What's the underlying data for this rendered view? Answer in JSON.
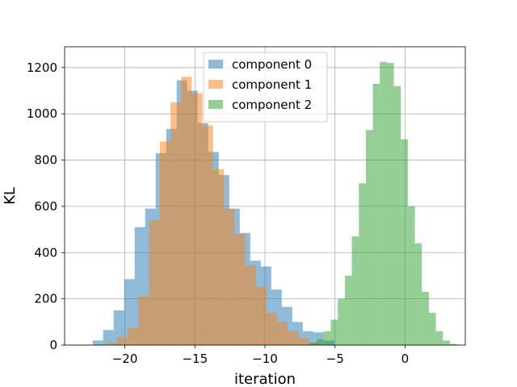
{
  "chart_data": {
    "type": "histogram",
    "title": "",
    "xlabel": "iteration",
    "ylabel": "KL",
    "xlim": [
      -24.3,
      4.3
    ],
    "ylim": [
      0,
      1290
    ],
    "xticks": [
      -20,
      -15,
      -10,
      -5,
      0
    ],
    "xtick_labels": [
      "−20",
      "−15",
      "−10",
      "−5",
      "0"
    ],
    "yticks": [
      0,
      200,
      400,
      600,
      800,
      1000,
      1200
    ],
    "ytick_labels": [
      "0",
      "200",
      "400",
      "600",
      "800",
      "1000",
      "1200"
    ],
    "grid": true,
    "legend_position": "upper center",
    "series": [
      {
        "name": "component 0",
        "color": "#1f77b4",
        "alpha": 0.5,
        "bin_start": -22.3,
        "bin_width": 0.75,
        "counts": [
          20,
          65,
          150,
          285,
          510,
          590,
          830,
          935,
          1145,
          1100,
          960,
          835,
          735,
          590,
          485,
          365,
          340,
          240,
          165,
          100,
          60,
          55,
          20
        ]
      },
      {
        "name": "component 1",
        "color": "#ff7f0e",
        "alpha": 0.5,
        "bin_start": -21.3,
        "bin_width": 0.76,
        "counts": [
          10,
          35,
          75,
          210,
          540,
          880,
          1050,
          1160,
          1090,
          950,
          760,
          590,
          480,
          345,
          250,
          140,
          100,
          60,
          30,
          10
        ]
      },
      {
        "name": "component 2",
        "color": "#2ca02c",
        "alpha": 0.5,
        "bin_start": -6.8,
        "bin_width": 0.5,
        "counts": [
          10,
          25,
          60,
          110,
          200,
          300,
          470,
          700,
          930,
          1130,
          1225,
          1220,
          1120,
          890,
          600,
          440,
          230,
          140,
          60,
          20,
          5
        ]
      }
    ]
  }
}
